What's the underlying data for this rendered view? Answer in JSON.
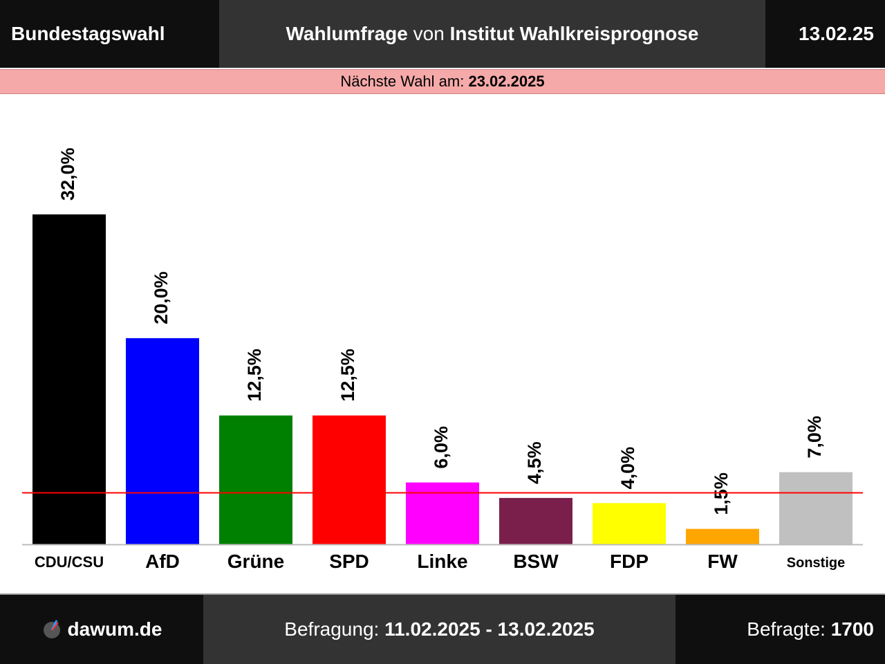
{
  "header": {
    "left": "Bundestagswahl",
    "center_prefix": "Wahlumfrage",
    "center_mid": " von ",
    "center_institute": "Institut Wahlkreisprognose",
    "right": "13.02.25"
  },
  "banner": {
    "label": "Nächste Wahl am: ",
    "date": "23.02.2025"
  },
  "chart_data": {
    "type": "bar",
    "categories": [
      "CDU/CSU",
      "AfD",
      "Grüne",
      "SPD",
      "Linke",
      "BSW",
      "FDP",
      "FW",
      "Sonstige"
    ],
    "values": [
      32.0,
      20.0,
      12.5,
      12.5,
      6.0,
      4.5,
      4.0,
      1.5,
      7.0
    ],
    "value_labels": [
      "32,0%",
      "20,0%",
      "12,5%",
      "12,5%",
      "6,0%",
      "4,5%",
      "4,0%",
      "1,5%",
      "7,0%"
    ],
    "colors": [
      "#000000",
      "#0000ff",
      "#008000",
      "#ff0000",
      "#ff00ff",
      "#7a1f4b",
      "#ffff00",
      "#ffa500",
      "#c0c0c0"
    ],
    "threshold": 5.0,
    "threshold_color": "#ff0000",
    "ylim": [
      0,
      32
    ]
  },
  "footer": {
    "brand": "dawum.de",
    "survey_label": "Befragung: ",
    "survey_range": "11.02.2025 - 13.02.2025",
    "respondents_label": "Befragte: ",
    "respondents": "1700"
  }
}
